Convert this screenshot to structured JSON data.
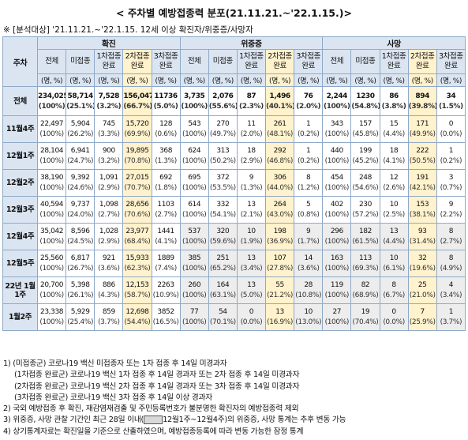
{
  "title": "< 주차별 예방접종력 분포(21.11.21.~'22.1.15.)>",
  "subtitle": "※ [분석대상] '21.11.21.~'22.1.15. 12세 이상 확진자/위중증/사망자",
  "table": {
    "row_header": "주차",
    "groups": [
      {
        "name": "확진",
        "columns": [
          "전체",
          "미접종",
          "1차접종 완료",
          "2차접종 완료",
          "3차접종 완료"
        ],
        "units": [
          "(명, %)",
          "(명, %)",
          "(명, %)",
          "(명, %)",
          "(명, %)"
        ]
      },
      {
        "name": "위중증",
        "columns": [
          "전체",
          "미접종",
          "1차접종 완료",
          "2차접종 완료",
          "3차접종 완료"
        ],
        "units": [
          "(명, %)",
          "(명, %)",
          "(명, %)",
          "(명, %)",
          "(명, %)"
        ]
      },
      {
        "name": "사망",
        "columns": [
          "전체",
          "미접종",
          "1차접종 완료",
          "2차접종 완료",
          "3차접종 완료"
        ],
        "units": [
          "(명, %)",
          "(명, %)",
          "(명, %)",
          "(명, %)",
          "(명, %)"
        ]
      }
    ],
    "rows": [
      {
        "label": "전체",
        "counts": [
          "234,025",
          "58,714",
          "7,528",
          "156,047",
          "11736",
          "3,735",
          "2,076",
          "87",
          "1,496",
          "76",
          "2,244",
          "1230",
          "86",
          "894",
          "34"
        ],
        "pcts": [
          "(100%)",
          "(25.1%)",
          "(3.2%)",
          "(66.7%)",
          "(5.0%)",
          "(100%)",
          "(55.6%)",
          "(2.3%)",
          "(40.1%)",
          "(2.0%)",
          "(100%)",
          "(54.8%)",
          "(3.8%)",
          "(39.8%)",
          "(1.5%)"
        ]
      },
      {
        "label": "11월4주",
        "counts": [
          "22,497",
          "5,904",
          "745",
          "15,720",
          "128",
          "543",
          "270",
          "11",
          "261",
          "1",
          "343",
          "157",
          "15",
          "171",
          "0"
        ],
        "pcts": [
          "(100%)",
          "(26.2%)",
          "(3.3%)",
          "(69.9%)",
          "(0.6%)",
          "(100%)",
          "(49.7%)",
          "(2.0%)",
          "(48.1%)",
          "(0.2%)",
          "(100%)",
          "(45.8%)",
          "(4.4%)",
          "(49.9%)",
          "(0.0%)"
        ]
      },
      {
        "label": "12월1주",
        "counts": [
          "28,104",
          "6,941",
          "900",
          "19,895",
          "368",
          "624",
          "313",
          "18",
          "292",
          "1",
          "440",
          "199",
          "18",
          "222",
          "1"
        ],
        "pcts": [
          "(100%)",
          "(24.7%)",
          "(3.2%)",
          "(70.8%)",
          "(1.3%)",
          "(100%)",
          "(50.2%)",
          "(2.9%)",
          "(46.8%)",
          "(0.2%)",
          "(100%)",
          "(45.2%)",
          "(4.1%)",
          "(50.5%)",
          "(0.2%)"
        ]
      },
      {
        "label": "12월2주",
        "counts": [
          "38,190",
          "9,392",
          "1,091",
          "27,015",
          "692",
          "695",
          "372",
          "9",
          "306",
          "8",
          "454",
          "248",
          "12",
          "191",
          "3"
        ],
        "pcts": [
          "(100%)",
          "(24.6%)",
          "(2.9%)",
          "(70.7%)",
          "(1.8%)",
          "(100%)",
          "(53.5%)",
          "(1.3%)",
          "(44.0%)",
          "(1.2%)",
          "(100%)",
          "(54.6%)",
          "(2.6%)",
          "(42.1%)",
          "(0.7%)"
        ]
      },
      {
        "label": "12월3주",
        "counts": [
          "40,594",
          "9,737",
          "1,098",
          "28,656",
          "1103",
          "614",
          "332",
          "13",
          "264",
          "5",
          "402",
          "230",
          "10",
          "153",
          "9"
        ],
        "pcts": [
          "(100%)",
          "(24.0%)",
          "(2.7%)",
          "(70.6%)",
          "(2.7%)",
          "(100%)",
          "(54.1%)",
          "(2.1%)",
          "(43.0%)",
          "(0.8%)",
          "(100%)",
          "(57.2%)",
          "(2.5%)",
          "(38.1%)",
          "(2.2%)"
        ]
      },
      {
        "label": "12월4주",
        "counts": [
          "35,042",
          "8,596",
          "1,028",
          "23,977",
          "1441",
          "537",
          "320",
          "10",
          "198",
          "9",
          "296",
          "182",
          "13",
          "93",
          "8"
        ],
        "pcts": [
          "(100%)",
          "(24.5%)",
          "(2.9%)",
          "(68.4%)",
          "(4.1%)",
          "(100%)",
          "(59.6%)",
          "(1.9%)",
          "(36.9%)",
          "(1.7%)",
          "(100%)",
          "(61.5%)",
          "(4.4%)",
          "(31.4%)",
          "(2.7%)"
        ]
      },
      {
        "label": "12월5주",
        "counts": [
          "25,560",
          "6,817",
          "921",
          "15,933",
          "1889",
          "385",
          "251",
          "13",
          "107",
          "14",
          "163",
          "113",
          "10",
          "32",
          "8"
        ],
        "pcts": [
          "(100%)",
          "(26.7%)",
          "(3.6%)",
          "(62.3%)",
          "(7.4%)",
          "(100%)",
          "(65.2%)",
          "(3.4%)",
          "(27.8%)",
          "(3.6%)",
          "(100%)",
          "(69.3%)",
          "(6.1%)",
          "(19.6%)",
          "(4.9%)"
        ]
      },
      {
        "label": "22년 1월1주",
        "counts": [
          "20,700",
          "5,398",
          "886",
          "12,153",
          "2263",
          "260",
          "164",
          "13",
          "55",
          "28",
          "119",
          "82",
          "8",
          "25",
          "4"
        ],
        "pcts": [
          "(100%)",
          "(26.1%)",
          "(4.3%)",
          "(58.7%)",
          "(10.9%)",
          "(100%)",
          "(63.1%)",
          "(5.0%)",
          "(21.2%)",
          "(10.8%)",
          "(100%)",
          "(68.9%)",
          "(6.7%)",
          "(21.0%)",
          "(3.4%)"
        ]
      },
      {
        "label": "1월2주",
        "counts": [
          "23,338",
          "5,929",
          "859",
          "12,698",
          "3852",
          "77",
          "54",
          "0",
          "13",
          "10",
          "27",
          "19",
          "0",
          "7",
          "1"
        ],
        "pcts": [
          "(100%)",
          "(25.4%)",
          "(3.7%)",
          "(54.4%)",
          "(16.5%)",
          "(100%)",
          "(70.1%)",
          "(0.0%)",
          "(16.9%)",
          "(13.0%)",
          "(100%)",
          "(70.4%)",
          "(0.0%)",
          "(25.9%)",
          "(3.7%)"
        ]
      }
    ]
  },
  "notes": [
    "1) (미접종군) 코로나19 백신 미접종자 또는 1차 접종 후 14일 미경과자",
    "(1차접종 완료군) 코로나19 백신 1차 접종 후 14일 경과자 또는 2차 접종 후 14일 미경과자",
    "(2차접종 완료군) 코로나19 백신 2차 접종 후 14일 경과자 또는 3차 접종 후 14일 미경과자",
    "(3차접종 완료군) 코로나19 백신 3차 접종 후 14일 이상 경과자",
    "2) 국외 예방접종 후 확진, 재감염재검출 및 주민등록번호가 불분명한 확진자의 예방접종력 제외",
    [
      "3) 위중증, 사망 관찰 기간인 최근 28일 이내(",
      "12월1주~12월4주)의 위중증, 사망 통계는 추후 변동 가능"
    ],
    "4) 상기통계자료는 확진일을 기준으로 산출하였으며, 예방접종등록에 따라 변동 가능한 잠정 통계"
  ]
}
